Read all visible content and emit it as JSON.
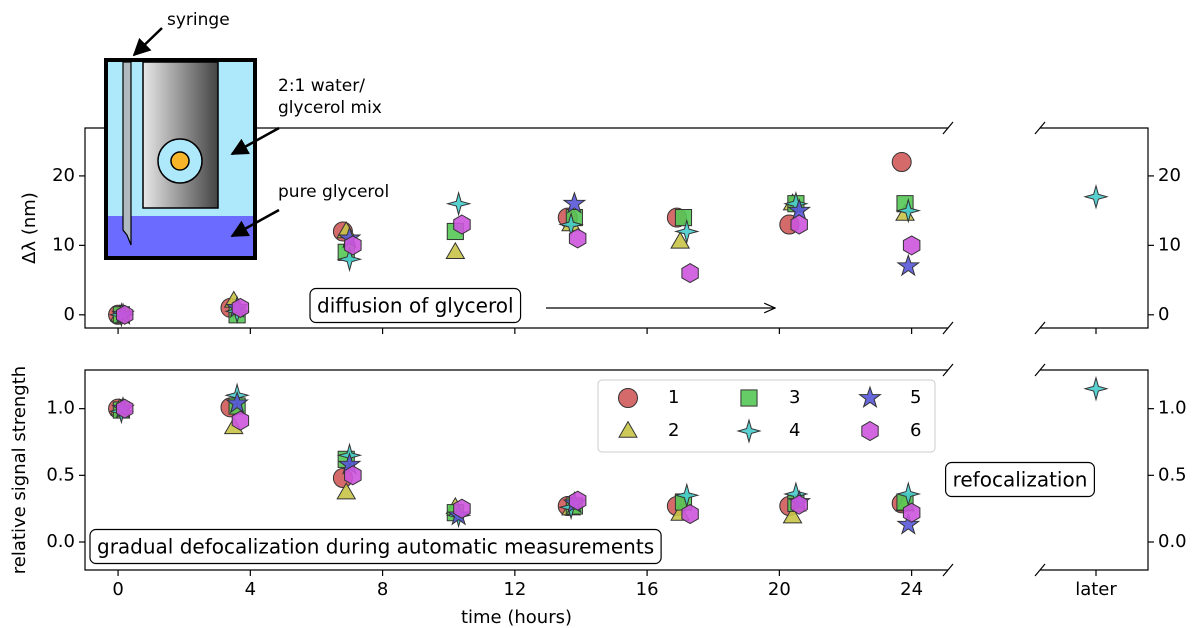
{
  "chart_data": [
    {
      "type": "scatter",
      "ylabel": "Δλ (nm)",
      "xlim": [
        -1,
        25.1
      ],
      "ylim": [
        -1.9,
        26.9
      ],
      "yticks": [
        0,
        10,
        20
      ],
      "xticks": [
        0,
        4,
        8,
        12,
        16,
        20,
        24
      ],
      "inset_labels": {
        "syringe": "syringe",
        "mix_line1": "2:1 water/",
        "mix_line2": "glycerol mix",
        "pure": "pure glycerol"
      },
      "annotation": "diffusion of glycerol",
      "series": [
        {
          "color": "#d05a5a",
          "marker": "circle",
          "x": [
            0,
            3.4,
            6.8,
            13.6,
            16.9,
            20.3,
            23.7
          ],
          "values": [
            0,
            1,
            12,
            14,
            14,
            13,
            22
          ]
        },
        {
          "color": "#c8c448",
          "marker": "triangle",
          "x": [
            0.05,
            3.5,
            6.9,
            10.2,
            13.7,
            17.0,
            20.4,
            23.8
          ],
          "values": [
            0,
            2,
            12,
            9,
            13,
            10.5,
            16,
            14.5
          ]
        },
        {
          "color": "#55c855",
          "marker": "square",
          "x": [
            0.1,
            3.6,
            6.9,
            10.2,
            13.8,
            17.1,
            20.5,
            23.8
          ],
          "values": [
            0,
            0,
            9,
            12,
            14,
            14,
            16,
            16
          ]
        },
        {
          "color": "#48cccc",
          "marker": "sparkle",
          "x": [
            0.1,
            3.6,
            7.0,
            10.3,
            13.7,
            17.2,
            20.5,
            23.9
          ],
          "values": [
            0,
            0.5,
            8,
            16,
            13,
            12,
            16,
            15
          ],
          "later": 17
        },
        {
          "color": "#5858d8",
          "marker": "star",
          "x": [
            0.15,
            3.6,
            7.0,
            13.8,
            20.6,
            23.9
          ],
          "values": [
            0,
            1,
            11,
            16,
            15,
            7
          ]
        },
        {
          "color": "#cc55dd",
          "marker": "hexagon",
          "x": [
            0.2,
            3.7,
            7.1,
            10.4,
            13.9,
            17.3,
            20.6,
            24.0
          ],
          "values": [
            0,
            1,
            10,
            13,
            11,
            6,
            13,
            10
          ]
        }
      ]
    },
    {
      "type": "scatter",
      "xlabel": "time (hours)",
      "ylabel": "relative signal strength",
      "xlim": [
        -1,
        25.1
      ],
      "ylim": [
        -0.21,
        1.29
      ],
      "yticks": [
        {
          "value": 0,
          "label": "0.0"
        },
        {
          "value": 0.5,
          "label": "0.5"
        },
        {
          "value": 1,
          "label": "1.0"
        }
      ],
      "xticks": [
        0,
        4,
        8,
        12,
        16,
        20,
        24
      ],
      "later_label": "later",
      "legend": "upper right",
      "annotations": [
        "refocalization",
        "gradual defocalization during automatic measurements"
      ],
      "series": [
        {
          "name": "1",
          "color": "#d05a5a",
          "marker": "circle",
          "x": [
            0,
            3.4,
            6.8,
            13.6,
            16.9,
            20.3,
            23.7
          ],
          "values": [
            1.0,
            1.01,
            0.48,
            0.27,
            0.27,
            0.27,
            0.29
          ]
        },
        {
          "name": "2",
          "color": "#c8c448",
          "marker": "triangle",
          "x": [
            0.05,
            3.5,
            6.9,
            10.2,
            13.7,
            17.0,
            20.4,
            23.8
          ],
          "values": [
            1.0,
            0.86,
            0.37,
            0.26,
            0.25,
            0.21,
            0.19,
            0.28
          ]
        },
        {
          "name": "3",
          "color": "#55c855",
          "marker": "square",
          "x": [
            0.1,
            3.6,
            6.9,
            10.2,
            13.8,
            17.1,
            20.5,
            23.8
          ],
          "values": [
            0.99,
            1.02,
            0.62,
            0.22,
            0.27,
            0.3,
            0.29,
            0.3
          ]
        },
        {
          "name": "4",
          "color": "#48cccc",
          "marker": "sparkle",
          "x": [
            0.1,
            3.6,
            7.0,
            10.3,
            13.7,
            17.2,
            20.5,
            23.9
          ],
          "values": [
            0.98,
            1.1,
            0.65,
            0.2,
            0.26,
            0.35,
            0.36,
            0.36
          ],
          "later": 1.15
        },
        {
          "name": "5",
          "color": "#5858d8",
          "marker": "star",
          "x": [
            0.15,
            3.6,
            7.0,
            10.3,
            13.8,
            20.6,
            23.9
          ],
          "values": [
            1.0,
            1.04,
            0.58,
            0.2,
            0.29,
            0.3,
            0.13
          ]
        },
        {
          "name": "6",
          "color": "#cc55dd",
          "marker": "hexagon",
          "x": [
            0.2,
            3.7,
            7.1,
            10.4,
            13.9,
            17.3,
            20.6,
            24.0
          ],
          "values": [
            1.0,
            0.91,
            0.5,
            0.25,
            0.31,
            0.21,
            0.28,
            0.22
          ]
        }
      ]
    }
  ]
}
